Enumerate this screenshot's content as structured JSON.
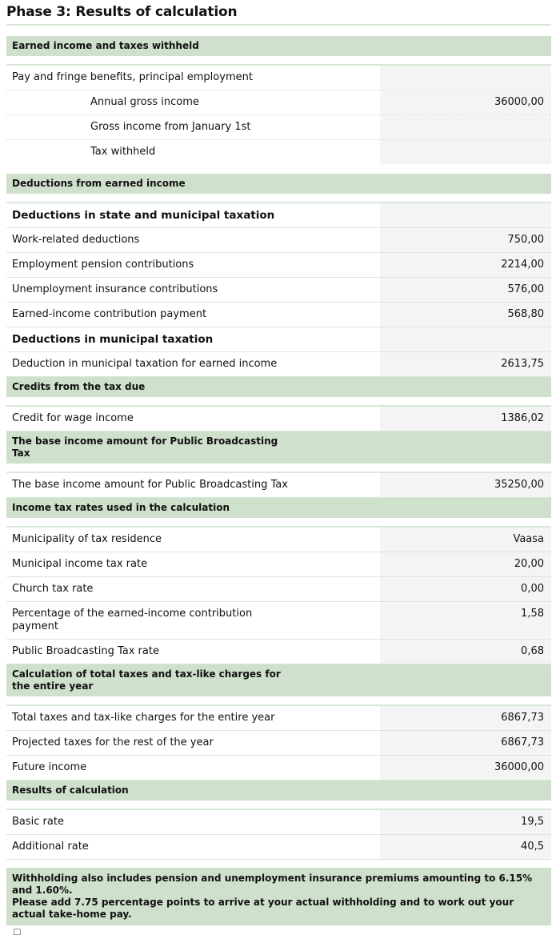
{
  "title": "Phase 3: Results of calculation",
  "sections": [
    {
      "title": "Earned income and taxes withheld",
      "gap": true,
      "rows": [
        {
          "label": "Pay and fringe benefits, principal employment",
          "value": "",
          "kind": "row",
          "dashed": true
        },
        {
          "label": "Annual gross income",
          "value": "36000,00",
          "kind": "indent",
          "dashed": true
        },
        {
          "label": "Gross income from January 1st",
          "value": "",
          "kind": "indent",
          "dashed": true
        },
        {
          "label": "Tax withheld",
          "value": "",
          "kind": "indent",
          "last": true
        }
      ],
      "after": 12
    },
    {
      "title": "Deductions from earned income",
      "gap": true,
      "rows": [
        {
          "label": "Deductions in state and municipal taxation",
          "value": "",
          "kind": "sub"
        },
        {
          "label": "Work-related deductions",
          "value": "750,00",
          "kind": "row"
        },
        {
          "label": "Employment pension contributions",
          "value": "2214,00",
          "kind": "row"
        },
        {
          "label": "Unemployment insurance contributions",
          "value": "576,00",
          "kind": "row"
        },
        {
          "label": "Earned-income contribution payment",
          "value": "568,80",
          "kind": "row"
        },
        {
          "label": "Deductions in municipal taxation",
          "value": "",
          "kind": "sub"
        },
        {
          "label": "Deduction in municipal taxation for earned income",
          "value": "2613,75",
          "kind": "row"
        }
      ]
    },
    {
      "title": "Credits from the tax due",
      "gap": true,
      "rows": [
        {
          "label": "Credit for wage income",
          "value": "1386,02",
          "kind": "row"
        }
      ]
    },
    {
      "title": "The base income amount for Public Broadcasting Tax",
      "gap": true,
      "rows": [
        {
          "label": "The base income amount for Public Broadcasting Tax",
          "value": "35250,00",
          "kind": "row"
        }
      ]
    },
    {
      "title": "Income tax rates used in the calculation",
      "gap": true,
      "rows": [
        {
          "label": "Municipality of tax residence",
          "value": "Vaasa",
          "kind": "row"
        },
        {
          "label": "Municipal income tax rate",
          "value": "20,00",
          "kind": "row"
        },
        {
          "label": "Church tax rate",
          "value": "0,00",
          "kind": "row"
        },
        {
          "label": "Percentage of the earned-income contribution payment",
          "value": "1,58",
          "kind": "row"
        },
        {
          "label": "Public Broadcasting Tax rate",
          "value": "0,68",
          "kind": "row"
        }
      ]
    },
    {
      "title": "Calculation of total taxes and tax-like charges for the entire year",
      "gap": true,
      "rows": [
        {
          "label": "Total taxes and tax-like charges for the entire year",
          "value": "6867,73",
          "kind": "row"
        },
        {
          "label": "Projected taxes for the rest of the year",
          "value": "6867,73",
          "kind": "row"
        },
        {
          "label": "Future income",
          "value": "36000,00",
          "kind": "row"
        }
      ]
    },
    {
      "title": "Results of calculation",
      "gap": true,
      "rows": [
        {
          "label": "Basic rate",
          "value": "19,5",
          "kind": "row"
        },
        {
          "label": "Additional rate",
          "value": "40,5",
          "kind": "row"
        }
      ]
    }
  ],
  "note": {
    "line1": "Withholding also includes pension and unemployment insurance premiums amounting to 6.15% and 1.60%.",
    "line2": "Please add 7.75 percentage points to arrive at your actual withholding and to work out your actual take-home pay."
  }
}
